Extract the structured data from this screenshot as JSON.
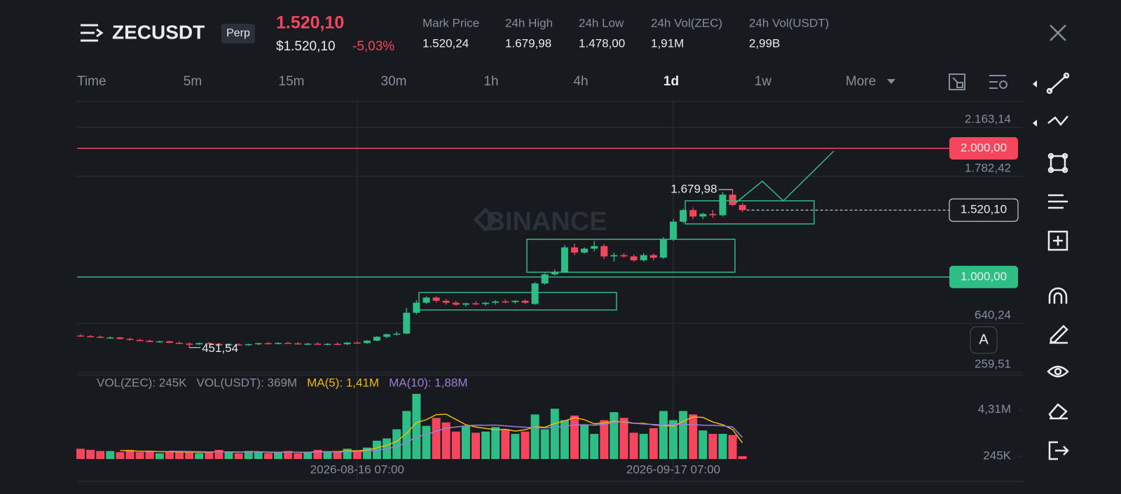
{
  "header": {
    "symbol": "ZECUSDT",
    "contract": "Perp",
    "price": "1.520,10",
    "usd_price": "$1.520,10",
    "change": "-5,03%",
    "stats": [
      {
        "label": "Mark Price",
        "value": "1.520,24"
      },
      {
        "label": "24h High",
        "value": "1.679,98"
      },
      {
        "label": "24h Low",
        "value": "1.478,00"
      },
      {
        "label": "24h Vol(ZEC)",
        "value": "1,91M"
      },
      {
        "label": "24h Vol(USDT)",
        "value": "2,99B"
      }
    ]
  },
  "toolbar": {
    "timeframes": [
      "Time",
      "5m",
      "15m",
      "30m",
      "1h",
      "4h",
      "1d",
      "1w",
      "More"
    ],
    "active": 6,
    "button": "A"
  },
  "watermark": "BINANCE",
  "chart_data": [
    {
      "type": "candlestick",
      "up_color": "#2ebd85",
      "down_color": "#f6465d",
      "grid": true,
      "open": [
        545,
        540,
        535,
        528,
        530,
        518,
        510,
        505,
        495,
        500,
        488,
        482,
        476,
        486,
        480,
        468,
        476,
        472,
        478,
        485,
        480,
        488,
        484,
        478,
        482,
        476,
        480,
        478,
        490,
        486,
        505,
        535,
        555,
        560,
        722,
        800,
        840,
        815,
        800,
        785,
        795,
        790,
        800,
        810,
        805,
        815,
        790,
        950,
        1020,
        1040,
        1230,
        1190,
        1220,
        1240,
        1160,
        1170,
        1160,
        1130,
        1170,
        1150,
        1290,
        1430,
        1520,
        1470,
        1490,
        1480,
        1640,
        1560
      ],
      "high": [
        555,
        548,
        545,
        538,
        535,
        528,
        520,
        512,
        505,
        505,
        498,
        492,
        490,
        495,
        488,
        480,
        485,
        482,
        490,
        495,
        492,
        498,
        494,
        488,
        492,
        486,
        492,
        495,
        500,
        510,
        540,
        560,
        575,
        760,
        820,
        850,
        850,
        830,
        815,
        800,
        810,
        805,
        820,
        825,
        818,
        825,
        960,
        1030,
        1060,
        1250,
        1260,
        1230,
        1280,
        1255,
        1190,
        1185,
        1175,
        1185,
        1180,
        1310,
        1450,
        1530,
        1540,
        1500,
        1520,
        1660,
        1679.98,
        1575
      ],
      "low": [
        535,
        530,
        525,
        520,
        515,
        505,
        500,
        492,
        488,
        485,
        478,
        451.54,
        470,
        478,
        462,
        460,
        468,
        465,
        470,
        478,
        474,
        480,
        476,
        470,
        474,
        468,
        472,
        470,
        482,
        480,
        500,
        525,
        545,
        555,
        710,
        790,
        800,
        785,
        775,
        770,
        780,
        775,
        785,
        795,
        790,
        790,
        785,
        940,
        1010,
        1030,
        1170,
        1180,
        1200,
        1140,
        1120,
        1150,
        1120,
        1120,
        1130,
        1140,
        1280,
        1420,
        1450,
        1450,
        1460,
        1470,
        1550,
        1505
      ],
      "close": [
        540,
        535,
        528,
        530,
        518,
        510,
        505,
        495,
        500,
        488,
        482,
        476,
        486,
        480,
        468,
        476,
        472,
        478,
        485,
        480,
        488,
        484,
        478,
        482,
        476,
        480,
        478,
        490,
        486,
        505,
        535,
        555,
        560,
        722,
        800,
        840,
        815,
        800,
        785,
        795,
        790,
        800,
        810,
        805,
        815,
        800,
        950,
        1020,
        1040,
        1230,
        1190,
        1220,
        1240,
        1160,
        1170,
        1160,
        1130,
        1170,
        1150,
        1290,
        1430,
        1520,
        1470,
        1490,
        1480,
        1640,
        1560,
        1520.1
      ],
      "ylim": [
        243.2,
        2364.4
      ],
      "yticks": [
        {
          "value": 2163.14,
          "label": "2.163,14"
        },
        {
          "value": 1782.42,
          "label": "1.782,42"
        },
        {
          "value": 640.24,
          "label": "640,24"
        },
        {
          "value": 259.51,
          "label": "259,51"
        }
      ],
      "levels": [
        {
          "value": 2000,
          "label": "2.000,00",
          "color": "#f6465d"
        },
        {
          "value": 1000,
          "label": "1.000,00",
          "color": "#2ebd85"
        }
      ],
      "last_price": {
        "value": 1520.1,
        "label": "1.520,10"
      },
      "high_label": {
        "index": 66,
        "value": 1679.98,
        "label": "1.679,98"
      },
      "low_label": {
        "index": 11,
        "value": 451.54,
        "label": "451,54"
      }
    },
    {
      "type": "bar",
      "categories": [
        null,
        null,
        null,
        null,
        null,
        null,
        null,
        null,
        null,
        null,
        null,
        null,
        null,
        null,
        null,
        null,
        null,
        null,
        null,
        null,
        null,
        null,
        null,
        null,
        null,
        null,
        null,
        null,
        "2026-08-16 07:00",
        null,
        null,
        null,
        null,
        null,
        null,
        null,
        null,
        null,
        null,
        null,
        null,
        null,
        null,
        null,
        null,
        null,
        null,
        null,
        null,
        null,
        null,
        null,
        null,
        null,
        null,
        null,
        null,
        null,
        null,
        null,
        "2026-09-17 07:00",
        null,
        null,
        null,
        null,
        null,
        null,
        null
      ],
      "labels": [
        "VOL(ZEC): 245K",
        "VOL(USDT): 369M"
      ],
      "series": [
        {
          "name": "volume",
          "values": [
            0.9,
            0.8,
            0.7,
            0.7,
            0.6,
            0.8,
            0.6,
            0.7,
            0.5,
            0.6,
            0.7,
            0.6,
            0.5,
            0.6,
            0.8,
            0.6,
            0.5,
            0.7,
            0.6,
            0.5,
            0.6,
            0.7,
            0.5,
            0.6,
            0.8,
            0.6,
            0.7,
            0.9,
            0.7,
            1.0,
            1.6,
            1.8,
            2.6,
            4.2,
            5.7,
            2.9,
            3.6,
            3.2,
            2.4,
            2.9,
            2.3,
            2.4,
            2.8,
            2.6,
            2.2,
            2.4,
            3.9,
            2.6,
            4.4,
            3.4,
            3.8,
            3.0,
            2.2,
            3.4,
            4.1,
            3.6,
            2.3,
            2.2,
            2.7,
            4.2,
            3.4,
            4.2,
            3.9,
            2.5,
            2.2,
            2.2,
            2.1,
            0.245
          ]
        },
        {
          "name": "MA(5): 1,41M",
          "color": "#f0b90b",
          "values": [
            null,
            null,
            null,
            null,
            0.74,
            0.72,
            0.68,
            0.68,
            0.64,
            0.64,
            0.62,
            0.62,
            0.58,
            0.6,
            0.64,
            0.62,
            0.6,
            0.64,
            0.64,
            0.58,
            0.58,
            0.62,
            0.58,
            0.58,
            0.64,
            0.64,
            0.64,
            0.72,
            0.72,
            0.78,
            0.98,
            1.2,
            1.54,
            2.24,
            3.18,
            3.44,
            3.88,
            3.92,
            3.46,
            3.0,
            2.8,
            2.68,
            2.56,
            2.6,
            2.44,
            2.56,
            2.82,
            2.78,
            3.1,
            3.34,
            3.62,
            3.44,
            3.08,
            3.16,
            3.3,
            3.24,
            3.12,
            3.12,
            2.98,
            2.92,
            2.88,
            3.3,
            3.68,
            3.64,
            3.24,
            3.0,
            2.58,
            1.41
          ]
        },
        {
          "name": "MA(10): 1,88M",
          "color": "#9b7fd4",
          "values": [
            null,
            null,
            null,
            null,
            null,
            null,
            null,
            null,
            null,
            0.69,
            0.67,
            0.66,
            0.64,
            0.62,
            0.63,
            0.63,
            0.61,
            0.61,
            0.62,
            0.61,
            0.6,
            0.61,
            0.6,
            0.6,
            0.62,
            0.62,
            0.62,
            0.65,
            0.66,
            0.68,
            0.78,
            0.9,
            1.08,
            1.44,
            1.94,
            2.14,
            2.44,
            2.7,
            2.8,
            2.9,
            2.96,
            2.95,
            2.97,
            2.9,
            2.83,
            2.78,
            2.74,
            2.72,
            2.76,
            2.86,
            2.98,
            3.0,
            2.96,
            3.02,
            3.18,
            3.3,
            3.14,
            3.06,
            3.02,
            2.98,
            3.02,
            3.02,
            3.0,
            2.96,
            2.95,
            2.9,
            2.8,
            1.88
          ]
        }
      ],
      "ylim": [
        0,
        7.1
      ],
      "yticks": [
        {
          "value": 4.31,
          "label": "4,31M"
        },
        {
          "value": 0.245,
          "label": "245K"
        }
      ]
    }
  ]
}
